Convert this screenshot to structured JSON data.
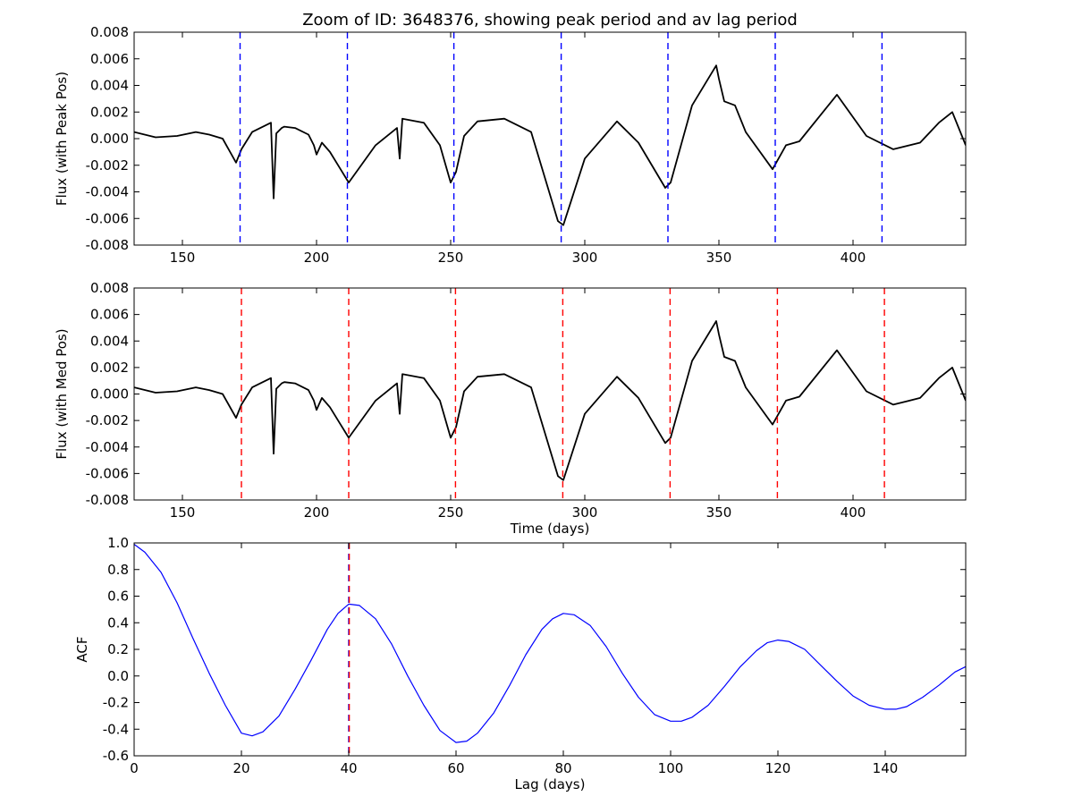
{
  "chart_data": [
    {
      "type": "line",
      "title": "Zoom of ID: 3648376, showing peak period and av lag period",
      "xlabel": "",
      "ylabel": "Flux (with Peak Pos)",
      "xlim": [
        132,
        442
      ],
      "ylim": [
        -0.008,
        0.008
      ],
      "xticks": [
        150,
        200,
        250,
        300,
        350,
        400
      ],
      "yticks": [
        "-0.008",
        "-0.006",
        "-0.004",
        "-0.002",
        "0.000",
        "0.002",
        "0.004",
        "0.006",
        "0.008"
      ],
      "series": [
        {
          "name": "flux",
          "color": "#000000",
          "x": [
            132,
            140,
            148,
            155,
            160,
            165,
            170,
            172,
            176,
            183,
            184,
            185,
            187,
            188,
            192,
            197,
            199,
            200,
            202,
            205,
            212,
            222,
            230,
            231,
            232,
            240,
            246,
            250,
            252,
            255,
            260,
            270,
            280,
            290,
            292,
            300,
            312,
            320,
            330,
            332,
            340,
            349,
            350,
            352,
            356,
            360,
            370,
            375,
            380,
            394,
            405,
            415,
            425,
            432,
            437,
            442
          ],
          "y": [
            0.0005,
            0.0001,
            0.0002,
            0.0005,
            0.0003,
            0.0,
            -0.0018,
            -0.0008,
            0.0005,
            0.0012,
            -0.0045,
            0.0004,
            0.0008,
            0.0009,
            0.0008,
            0.0003,
            -0.0005,
            -0.0012,
            -0.0003,
            -0.001,
            -0.0033,
            -0.0005,
            0.0008,
            -0.0015,
            0.0015,
            0.0012,
            -0.0005,
            -0.0033,
            -0.0025,
            0.0002,
            0.0013,
            0.0015,
            0.0005,
            -0.0062,
            -0.0065,
            -0.0015,
            0.0013,
            -0.0003,
            -0.0037,
            -0.0033,
            0.0025,
            0.0055,
            0.0045,
            0.0028,
            0.0025,
            0.0005,
            -0.0023,
            -0.0005,
            -0.0002,
            0.0033,
            0.0002,
            -0.0008,
            -0.0003,
            0.0012,
            0.002,
            -0.0005
          ]
        }
      ],
      "vlines": {
        "color": "#0000ff",
        "style": "dashed",
        "x": [
          171.5,
          211.5,
          251.2,
          291.2,
          331.0,
          371.0,
          410.8
        ]
      }
    },
    {
      "type": "line",
      "title": "",
      "xlabel": "Time (days)",
      "ylabel": "Flux (with Med Pos)",
      "xlim": [
        132,
        442
      ],
      "ylim": [
        -0.008,
        0.008
      ],
      "xticks": [
        150,
        200,
        250,
        300,
        350,
        400
      ],
      "yticks": [
        "-0.008",
        "-0.006",
        "-0.004",
        "-0.002",
        "0.000",
        "0.002",
        "0.004",
        "0.006",
        "0.008"
      ],
      "series": [
        {
          "name": "flux",
          "color": "#000000",
          "x": [
            132,
            140,
            148,
            155,
            160,
            165,
            170,
            172,
            176,
            183,
            184,
            185,
            187,
            188,
            192,
            197,
            199,
            200,
            202,
            205,
            212,
            222,
            230,
            231,
            232,
            240,
            246,
            250,
            252,
            255,
            260,
            270,
            280,
            290,
            292,
            300,
            312,
            320,
            330,
            332,
            340,
            349,
            350,
            352,
            356,
            360,
            370,
            375,
            380,
            394,
            405,
            415,
            425,
            432,
            437,
            442
          ],
          "y": [
            0.0005,
            0.0001,
            0.0002,
            0.0005,
            0.0003,
            0.0,
            -0.0018,
            -0.0008,
            0.0005,
            0.0012,
            -0.0045,
            0.0004,
            0.0008,
            0.0009,
            0.0008,
            0.0003,
            -0.0005,
            -0.0012,
            -0.0003,
            -0.001,
            -0.0033,
            -0.0005,
            0.0008,
            -0.0015,
            0.0015,
            0.0012,
            -0.0005,
            -0.0033,
            -0.0025,
            0.0002,
            0.0013,
            0.0015,
            0.0005,
            -0.0062,
            -0.0065,
            -0.0015,
            0.0013,
            -0.0003,
            -0.0037,
            -0.0033,
            0.0025,
            0.0055,
            0.0045,
            0.0028,
            0.0025,
            0.0005,
            -0.0023,
            -0.0005,
            -0.0002,
            0.0033,
            0.0002,
            -0.0008,
            -0.0003,
            0.0012,
            0.002,
            -0.0005
          ]
        }
      ],
      "vlines": {
        "color": "#ff0000",
        "style": "dashed",
        "x": [
          172.0,
          212.0,
          251.8,
          291.8,
          331.8,
          371.8,
          411.7
        ]
      }
    },
    {
      "type": "line",
      "title": "",
      "xlabel": "Lag (days)",
      "ylabel": "ACF",
      "xlim": [
        0,
        155
      ],
      "ylim": [
        -0.6,
        1.0
      ],
      "xticks": [
        0,
        20,
        40,
        60,
        80,
        100,
        120,
        140
      ],
      "yticks": [
        "-0.6",
        "-0.4",
        "-0.2",
        "0.0",
        "0.2",
        "0.4",
        "0.6",
        "0.8",
        "1.0"
      ],
      "series": [
        {
          "name": "ACF",
          "color": "#0000ff",
          "x": [
            0,
            2,
            5,
            8,
            11,
            14,
            17,
            20,
            22,
            24,
            27,
            30,
            33,
            36,
            38,
            40,
            42,
            45,
            48,
            51,
            54,
            57,
            60,
            62,
            64,
            67,
            70,
            73,
            76,
            78,
            80,
            82,
            85,
            88,
            91,
            94,
            97,
            100,
            102,
            104,
            107,
            110,
            113,
            116,
            118,
            120,
            122,
            125,
            128,
            131,
            134,
            137,
            140,
            142,
            144,
            147,
            150,
            153,
            155
          ],
          "y": [
            0.99,
            0.93,
            0.78,
            0.55,
            0.28,
            0.02,
            -0.22,
            -0.43,
            -0.45,
            -0.42,
            -0.3,
            -0.1,
            0.12,
            0.35,
            0.47,
            0.54,
            0.53,
            0.43,
            0.24,
            0.0,
            -0.22,
            -0.41,
            -0.5,
            -0.49,
            -0.43,
            -0.28,
            -0.07,
            0.16,
            0.35,
            0.43,
            0.47,
            0.46,
            0.38,
            0.22,
            0.02,
            -0.16,
            -0.29,
            -0.34,
            -0.34,
            -0.31,
            -0.22,
            -0.08,
            0.07,
            0.19,
            0.25,
            0.27,
            0.26,
            0.2,
            0.08,
            -0.04,
            -0.15,
            -0.22,
            -0.25,
            -0.25,
            -0.23,
            -0.16,
            -0.07,
            0.03,
            0.07
          ]
        }
      ],
      "vlines": {
        "colors": [
          "#0000ff",
          "#ff0000"
        ],
        "style": "dashed",
        "x": [
          40.0,
          40.1
        ]
      }
    }
  ]
}
